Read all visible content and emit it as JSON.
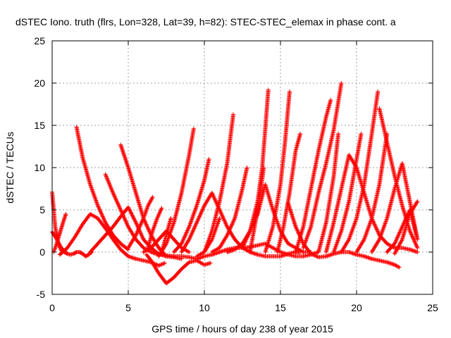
{
  "chart_data": {
    "type": "scatter",
    "title": "dSTEC Iono. truth (flrs, Lon=328, Lat=39, h=82): STEC-STEC_elemax in phase cont. a",
    "xlabel": "GPS time / hours of day 238 of year 2015",
    "ylabel": "dSTEC  / TECUs",
    "xlim": [
      0,
      25
    ],
    "ylim": [
      -5,
      25
    ],
    "xticks": [
      "0",
      "5",
      "10",
      "15",
      "20",
      "25"
    ],
    "yticks": [
      "-5",
      "0",
      "5",
      "10",
      "15",
      "20",
      "25"
    ],
    "grid": true,
    "legend": "none",
    "marker": "plus",
    "color": "#ff0000",
    "series": [
      {
        "x": [
          0.0,
          0.2,
          0.4,
          0.6,
          0.8,
          1.0,
          1.2,
          1.4,
          1.6,
          1.8,
          2.0,
          2.2,
          2.4,
          2.6
        ],
        "y": [
          7.1,
          3.0,
          1.0,
          0.2,
          0.0,
          -0.2,
          -0.3,
          -0.2,
          0.0,
          0.0,
          -0.2,
          -0.5,
          -0.3,
          0.0
        ]
      },
      {
        "x": [
          0.0,
          0.3,
          0.6,
          0.9
        ],
        "y": [
          2.4,
          1.5,
          0.5,
          0.0
        ]
      },
      {
        "x": [
          0.1,
          0.3,
          0.5,
          0.7,
          0.9
        ],
        "y": [
          0.0,
          1.0,
          2.2,
          3.4,
          4.5
        ]
      },
      {
        "x": [
          0.5,
          1.0,
          1.5,
          2.0,
          2.5,
          3.0,
          3.5,
          4.0,
          4.5,
          5.0,
          5.5,
          6.0,
          6.5,
          7.0,
          7.4
        ],
        "y": [
          -0.3,
          0.5,
          1.8,
          3.3,
          4.5,
          4.0,
          2.8,
          1.5,
          0.3,
          -0.5,
          -0.8,
          -1.0,
          -1.2,
          -1.6,
          -1.3
        ]
      },
      {
        "x": [
          1.6,
          2.0,
          2.5,
          3.0,
          3.5,
          4.0,
          4.5,
          5.0
        ],
        "y": [
          14.8,
          11.2,
          8.0,
          5.5,
          3.5,
          2.0,
          1.0,
          0.3
        ]
      },
      {
        "x": [
          2.5,
          3.0,
          3.5,
          4.0,
          4.5,
          5.0,
          5.5,
          6.0,
          6.5,
          7.0,
          7.5,
          8.0,
          8.5
        ],
        "y": [
          0.0,
          1.0,
          2.0,
          3.0,
          4.2,
          5.3,
          3.5,
          1.5,
          0.5,
          -0.2,
          -0.5,
          -0.6,
          -0.8
        ]
      },
      {
        "x": [
          3.5,
          4.0,
          4.5,
          5.0,
          5.5,
          6.0,
          6.5,
          7.0,
          7.2
        ],
        "y": [
          9.2,
          7.0,
          5.0,
          3.0,
          1.5,
          0.5,
          0.0,
          -0.3,
          -0.3
        ]
      },
      {
        "x": [
          4.5,
          5.0,
          5.5,
          6.0,
          6.5,
          7.0,
          7.5
        ],
        "y": [
          12.7,
          10.0,
          7.0,
          4.0,
          2.0,
          0.5,
          -0.5
        ]
      },
      {
        "x": [
          5.0,
          5.5,
          6.0,
          6.3,
          6.6
        ],
        "y": [
          0.5,
          2.0,
          4.0,
          5.5,
          6.5
        ]
      },
      {
        "x": [
          6.0,
          6.5,
          7.0,
          7.5,
          8.0,
          8.5,
          9.0
        ],
        "y": [
          0.0,
          0.5,
          1.5,
          2.5,
          1.5,
          0.5,
          0.0
        ]
      },
      {
        "x": [
          6.3,
          6.6,
          6.9,
          7.2
        ],
        "y": [
          0.5,
          2.5,
          4.0,
          5.2
        ]
      },
      {
        "x": [
          6.2,
          6.5,
          7.0,
          7.5,
          8.0,
          8.5,
          9.0,
          9.5,
          10.0,
          10.4
        ],
        "y": [
          -0.3,
          -1.0,
          -2.5,
          -3.7,
          -3.0,
          -2.0,
          -1.2,
          -1.0,
          -1.5,
          -1.3
        ]
      },
      {
        "x": [
          7.0,
          7.5,
          8.0,
          8.5,
          9.0,
          9.3
        ],
        "y": [
          -0.5,
          1.0,
          3.5,
          7.0,
          11.5,
          14.6
        ]
      },
      {
        "x": [
          7.2,
          7.5,
          7.8
        ],
        "y": [
          0.0,
          2.0,
          4.0
        ]
      },
      {
        "x": [
          7.5,
          8.0,
          8.5,
          9.0,
          9.5,
          10.0,
          10.5,
          11.0,
          11.5,
          12.0,
          12.5,
          13.0,
          13.5,
          14.0,
          14.5,
          15.0,
          15.5,
          16.0,
          16.5,
          17.0,
          17.5
        ],
        "y": [
          -0.4,
          -0.5,
          -0.5,
          -0.6,
          -0.8,
          -0.5,
          -0.3,
          0.0,
          0.3,
          0.5,
          0.5,
          0.6,
          0.8,
          1.0,
          0.5,
          0.0,
          -0.3,
          -0.5,
          -0.5,
          -0.3,
          0.0
        ]
      },
      {
        "x": [
          8.0,
          8.5,
          9.0,
          9.5,
          10.0,
          10.3
        ],
        "y": [
          0.0,
          1.0,
          3.0,
          5.5,
          8.5,
          11.0
        ]
      },
      {
        "x": [
          8.5,
          9.0,
          9.5,
          10.0,
          10.5,
          11.0,
          11.5,
          12.0,
          12.5,
          13.0,
          13.5,
          14.0,
          14.5,
          15.0,
          15.5,
          16.0,
          16.3
        ],
        "y": [
          0.0,
          1.5,
          3.5,
          5.5,
          7.0,
          5.0,
          3.0,
          1.5,
          0.5,
          0.0,
          -0.3,
          -0.5,
          -0.5,
          -0.5,
          -0.2,
          0.0,
          0.0
        ]
      },
      {
        "x": [
          9.5,
          10.0,
          10.5,
          11.0
        ],
        "y": [
          -0.5,
          0.0,
          1.5,
          4.0
        ]
      },
      {
        "x": [
          10.0,
          10.5,
          11.0,
          11.5,
          11.9
        ],
        "y": [
          0.0,
          2.5,
          6.0,
          10.5,
          16.3
        ]
      },
      {
        "x": [
          10.5,
          11.0,
          11.5,
          12.0,
          12.5,
          12.8
        ],
        "y": [
          0.0,
          0.5,
          2.0,
          4.0,
          7.5,
          10.0
        ]
      },
      {
        "x": [
          11.5,
          12.0,
          12.5,
          13.0,
          13.5,
          14.0,
          14.5,
          15.0,
          15.5,
          16.0,
          16.5,
          17.0
        ],
        "y": [
          0.0,
          0.3,
          1.0,
          2.5,
          4.5,
          8.0,
          5.0,
          2.5,
          1.0,
          0.5,
          0.0,
          0.0
        ]
      },
      {
        "x": [
          12.5,
          13.0,
          13.5,
          13.8,
          14.0,
          14.2
        ],
        "y": [
          0.5,
          2.5,
          6.0,
          10.0,
          14.5,
          19.2
        ]
      },
      {
        "x": [
          13.0,
          13.3,
          13.6,
          13.9
        ],
        "y": [
          0.0,
          3.0,
          6.0,
          10.0
        ]
      },
      {
        "x": [
          14.0,
          14.5,
          15.0,
          15.3,
          15.6
        ],
        "y": [
          0.0,
          3.0,
          8.0,
          13.0,
          19.0
        ]
      },
      {
        "x": [
          14.8,
          15.2,
          15.6,
          16.0,
          16.3
        ],
        "y": [
          0.0,
          3.0,
          7.0,
          12.0,
          14.0
        ]
      },
      {
        "x": [
          15.5,
          16.0,
          16.5,
          17.0,
          17.5,
          18.0,
          18.5,
          19.0,
          19.5,
          20.0,
          20.5,
          21.0,
          21.5,
          22.0,
          22.5,
          22.8
        ],
        "y": [
          5.8,
          3.0,
          1.0,
          -0.2,
          -0.6,
          -0.5,
          -0.2,
          0.0,
          0.0,
          -0.3,
          -0.5,
          -0.8,
          -1.0,
          -1.2,
          -1.5,
          -1.8
        ]
      },
      {
        "x": [
          16.0,
          16.5,
          17.0,
          17.5,
          18.0,
          18.3
        ],
        "y": [
          0.0,
          3.0,
          7.5,
          12.0,
          16.0,
          18.0
        ]
      },
      {
        "x": [
          16.5,
          17.0,
          17.5,
          18.0,
          18.5,
          19.0
        ],
        "y": [
          0.5,
          3.0,
          7.0,
          10.5,
          14.5,
          20.0
        ]
      },
      {
        "x": [
          17.5,
          18.0,
          18.5,
          18.8
        ],
        "y": [
          0.0,
          3.5,
          9.0,
          14.0
        ]
      },
      {
        "x": [
          18.0,
          18.5,
          19.0,
          19.5,
          20.0,
          20.5,
          21.0,
          21.5,
          22.0,
          22.5,
          23.0,
          23.5,
          24.0
        ],
        "y": [
          0.0,
          3.5,
          7.5,
          11.5,
          10.0,
          7.0,
          4.0,
          2.0,
          1.0,
          0.5,
          0.5,
          0.3,
          0.0
        ]
      },
      {
        "x": [
          18.5,
          19.0,
          19.5,
          20.0,
          20.3
        ],
        "y": [
          0.0,
          2.5,
          6.0,
          11.0,
          14.0
        ]
      },
      {
        "x": [
          19.0,
          19.5,
          20.0,
          20.5,
          21.0,
          21.4
        ],
        "y": [
          0.0,
          1.5,
          4.0,
          8.0,
          14.0,
          19.0
        ]
      },
      {
        "x": [
          20.0,
          20.5,
          21.0,
          21.5,
          22.0
        ],
        "y": [
          0.0,
          1.5,
          4.0,
          8.0,
          14.0
        ]
      },
      {
        "x": [
          21.0,
          21.5,
          22.0,
          22.5,
          23.0,
          23.5,
          24.0
        ],
        "y": [
          0.0,
          1.5,
          4.0,
          7.5,
          10.5,
          6.0,
          1.5
        ]
      },
      {
        "x": [
          21.5,
          22.0,
          22.5,
          23.0,
          23.5,
          24.0
        ],
        "y": [
          17.0,
          13.0,
          9.0,
          5.5,
          2.5,
          0.5
        ]
      },
      {
        "x": [
          22.0,
          22.5,
          23.0,
          23.5,
          24.0
        ],
        "y": [
          0.0,
          1.0,
          3.0,
          5.0,
          1.5
        ]
      },
      {
        "x": [
          22.5,
          23.0,
          23.5,
          24.0
        ],
        "y": [
          -0.2,
          1.5,
          4.5,
          6.0
        ]
      }
    ]
  }
}
